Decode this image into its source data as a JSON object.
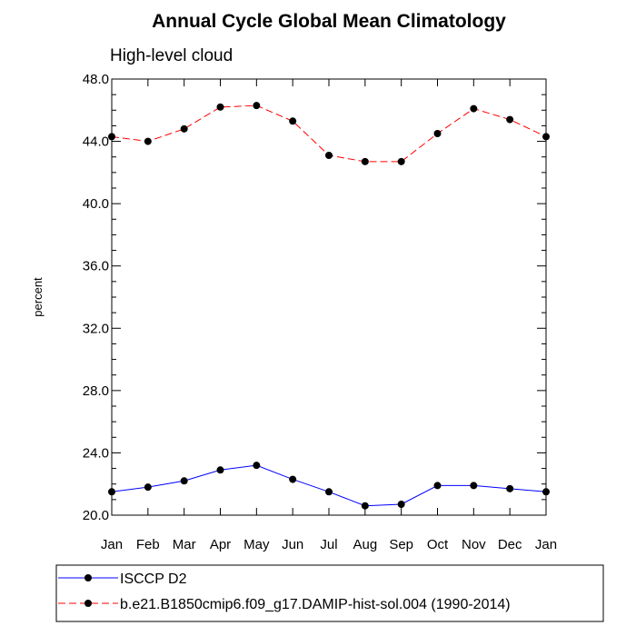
{
  "chart_data": {
    "type": "line",
    "title": "Annual Cycle Global Mean Climatology",
    "subtitle": "High-level cloud",
    "ylabel": "percent",
    "xlabel": "",
    "categories": [
      "Jan",
      "Feb",
      "Mar",
      "Apr",
      "May",
      "Jun",
      "Jul",
      "Aug",
      "Sep",
      "Oct",
      "Nov",
      "Dec",
      "Jan"
    ],
    "ylim": [
      20.0,
      48.0
    ],
    "yticks": [
      "20.0",
      "24.0",
      "28.0",
      "32.0",
      "36.0",
      "40.0",
      "44.0",
      "48.0"
    ],
    "series": [
      {
        "name": "ISCCP D2",
        "color": "#0000ff",
        "dash": "solid",
        "values": [
          21.5,
          21.8,
          22.2,
          22.9,
          23.2,
          22.3,
          21.5,
          20.6,
          20.7,
          21.9,
          21.9,
          21.7,
          21.5
        ]
      },
      {
        "name": "b.e21.B1850cmip6.f09_g17.DAMIP-hist-sol.004 (1990-2014)",
        "color": "#ff0000",
        "dash": "dashed",
        "values": [
          44.3,
          44.0,
          44.8,
          46.2,
          46.3,
          45.3,
          43.1,
          42.7,
          42.7,
          44.5,
          46.1,
          45.4,
          44.3
        ]
      }
    ],
    "grid": false,
    "legend_position": "bottom"
  }
}
